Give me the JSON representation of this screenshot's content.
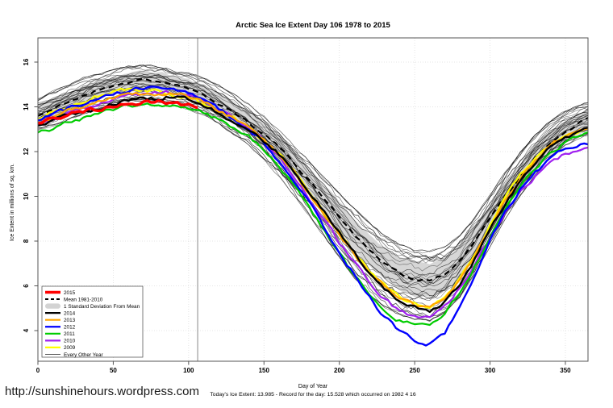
{
  "title": "Arctic Sea Ice Extent Day 106 1978 to 2015",
  "footer": {
    "url": "http://sunshinehours.wordpress.com",
    "status": "Today's Ice Extent: 13.985  - Record for the day: 15.528 which occurred on 1982 4 16"
  },
  "legend": [
    {
      "label": "2015",
      "color": "#ff0000",
      "swatch": "thick"
    },
    {
      "label": "Mean 1981-2010",
      "color": "#000000",
      "swatch": "dashed"
    },
    {
      "label": "1 Standard Deviation From Mean",
      "color": "#d3d3d3",
      "swatch": "band"
    },
    {
      "label": "2014",
      "color": "#000000",
      "swatch": "line"
    },
    {
      "label": "2013",
      "color": "#ffa500",
      "swatch": "line"
    },
    {
      "label": "2012",
      "color": "#0000ff",
      "swatch": "line"
    },
    {
      "label": "2011",
      "color": "#00cc00",
      "swatch": "line"
    },
    {
      "label": "2010",
      "color": "#a020f0",
      "swatch": "line"
    },
    {
      "label": "2009",
      "color": "#ffff00",
      "swatch": "line"
    },
    {
      "label": "Every Other Year",
      "color": "#444444",
      "swatch": "thin"
    }
  ],
  "chart_data": {
    "type": "line",
    "title": "Arctic Sea Ice Extent Day 106 1978 to 2015",
    "xlabel": "Day of Year",
    "ylabel": "Ice Extent in millions of sq. km.",
    "xlim": [
      0,
      365
    ],
    "ylim": [
      2.6,
      17.1
    ],
    "xticks": [
      0,
      50,
      100,
      150,
      200,
      250,
      300,
      350
    ],
    "yticks": [
      4,
      6,
      8,
      10,
      12,
      14,
      16
    ],
    "grid": "dotted",
    "legend_position": "bottom-left",
    "marker_day": 106,
    "todays_extent": 13.985,
    "record_for_day": {
      "value": 15.528,
      "date": "1982 4 16"
    },
    "x": [
      0,
      10,
      20,
      30,
      40,
      50,
      60,
      70,
      80,
      90,
      100,
      106,
      110,
      120,
      130,
      140,
      150,
      160,
      170,
      180,
      190,
      200,
      210,
      220,
      230,
      240,
      250,
      260,
      270,
      280,
      290,
      300,
      310,
      320,
      330,
      340,
      350,
      360,
      365
    ],
    "mean_series": {
      "name": "Mean 1981-2010",
      "color": "#000000",
      "style": "dashed",
      "width": 2.2,
      "values": [
        13.6,
        13.9,
        14.2,
        14.5,
        14.75,
        14.95,
        15.1,
        15.2,
        15.15,
        15.0,
        14.8,
        14.6,
        14.5,
        14.15,
        13.75,
        13.3,
        12.8,
        12.2,
        11.5,
        10.7,
        9.9,
        9.1,
        8.3,
        7.6,
        7.0,
        6.55,
        6.3,
        6.25,
        6.5,
        7.1,
        8.0,
        9.0,
        10.0,
        10.9,
        11.7,
        12.4,
        12.9,
        13.3,
        13.45
      ]
    },
    "std_dev_band": {
      "name": "1 Standard Deviation From Mean",
      "color": "#d6d6d6",
      "sd": [
        0.45,
        0.45,
        0.42,
        0.4,
        0.4,
        0.4,
        0.4,
        0.4,
        0.4,
        0.4,
        0.42,
        0.43,
        0.44,
        0.45,
        0.47,
        0.5,
        0.52,
        0.55,
        0.57,
        0.6,
        0.62,
        0.65,
        0.67,
        0.7,
        0.72,
        0.75,
        0.75,
        0.75,
        0.72,
        0.7,
        0.65,
        0.6,
        0.58,
        0.55,
        0.52,
        0.5,
        0.48,
        0.46,
        0.45
      ]
    },
    "series": [
      {
        "name": "2009",
        "color": "#ffff00",
        "width": 2.2,
        "values": [
          13.5,
          13.75,
          14.0,
          14.25,
          14.5,
          14.7,
          14.8,
          14.75,
          14.65,
          14.5,
          14.35,
          14.25,
          14.1,
          13.8,
          13.45,
          13.0,
          12.5,
          11.9,
          11.1,
          10.2,
          9.3,
          8.4,
          7.5,
          6.7,
          6.0,
          5.5,
          5.2,
          5.1,
          5.5,
          6.3,
          7.4,
          8.7,
          9.9,
          10.9,
          11.7,
          12.3,
          12.7,
          12.95,
          13.0
        ]
      },
      {
        "name": "2010",
        "color": "#a020f0",
        "width": 2.2,
        "values": [
          13.2,
          13.45,
          13.7,
          13.9,
          14.1,
          14.3,
          14.45,
          14.55,
          14.6,
          14.65,
          14.5,
          14.4,
          14.25,
          13.9,
          13.5,
          13.05,
          12.5,
          11.8,
          10.9,
          9.95,
          8.95,
          7.95,
          7.05,
          6.15,
          5.4,
          4.85,
          4.6,
          4.65,
          5.1,
          5.9,
          7.0,
          8.15,
          9.25,
          10.2,
          10.9,
          11.5,
          11.9,
          12.15,
          12.25
        ]
      },
      {
        "name": "2011",
        "color": "#00cc00",
        "width": 2.2,
        "values": [
          12.85,
          13.05,
          13.3,
          13.5,
          13.7,
          13.9,
          14.05,
          14.15,
          14.1,
          14.0,
          13.9,
          13.8,
          13.7,
          13.4,
          13.05,
          12.65,
          12.1,
          11.4,
          10.5,
          9.5,
          8.5,
          7.5,
          6.5,
          5.6,
          4.9,
          4.45,
          4.25,
          4.3,
          4.8,
          5.7,
          6.9,
          8.2,
          9.5,
          10.5,
          11.3,
          11.9,
          12.4,
          12.75,
          12.85
        ]
      },
      {
        "name": "2012",
        "color": "#0000ff",
        "width": 2.4,
        "values": [
          13.4,
          13.7,
          13.95,
          14.15,
          14.35,
          14.55,
          14.7,
          14.85,
          14.9,
          14.8,
          14.6,
          14.45,
          14.3,
          13.9,
          13.5,
          13.0,
          12.4,
          11.6,
          10.7,
          9.7,
          8.6,
          7.5,
          6.5,
          5.5,
          4.6,
          4.0,
          3.55,
          3.4,
          3.9,
          5.0,
          6.5,
          8.0,
          9.3,
          10.3,
          11.1,
          11.7,
          12.1,
          12.35,
          12.4
        ]
      },
      {
        "name": "2013",
        "color": "#ffa500",
        "width": 2.2,
        "values": [
          13.3,
          13.55,
          13.8,
          14.0,
          14.2,
          14.4,
          14.55,
          14.6,
          14.55,
          14.6,
          14.45,
          14.35,
          14.2,
          13.85,
          13.45,
          13.0,
          12.5,
          11.85,
          11.05,
          10.15,
          9.2,
          8.3,
          7.4,
          6.55,
          5.95,
          5.45,
          5.15,
          5.05,
          5.45,
          6.25,
          7.35,
          8.6,
          9.8,
          10.8,
          11.6,
          12.3,
          12.7,
          12.9,
          12.95
        ]
      },
      {
        "name": "2014",
        "color": "#000000",
        "width": 2.4,
        "values": [
          13.15,
          13.4,
          13.6,
          13.8,
          13.95,
          14.15,
          14.3,
          14.45,
          14.35,
          14.5,
          14.3,
          14.2,
          14.05,
          13.7,
          13.35,
          12.95,
          12.5,
          11.9,
          11.1,
          10.2,
          9.3,
          8.4,
          7.5,
          6.6,
          5.9,
          5.3,
          5.0,
          4.9,
          5.3,
          6.1,
          7.2,
          8.5,
          9.7,
          10.7,
          11.5,
          12.2,
          12.6,
          12.9,
          13.0
        ]
      },
      {
        "name": "2015",
        "color": "#ff0000",
        "width": 3.4,
        "values": [
          13.2,
          13.45,
          13.65,
          13.8,
          13.9,
          14.0,
          14.1,
          14.2,
          14.25,
          14.15,
          14.05,
          13.985,
          null,
          null,
          null,
          null,
          null,
          null,
          null,
          null,
          null,
          null,
          null,
          null,
          null,
          null,
          null,
          null,
          null,
          null,
          null,
          null,
          null,
          null,
          null,
          null,
          null,
          null,
          null
        ]
      }
    ],
    "background": {
      "name": "Every Other Year",
      "color": "#000000",
      "count": 31,
      "upper": [
        14.4,
        14.7,
        15.0,
        15.3,
        15.5,
        15.7,
        15.85,
        15.9,
        15.85,
        15.7,
        15.55,
        15.45,
        15.35,
        15.0,
        14.6,
        14.15,
        13.6,
        13.0,
        12.3,
        11.6,
        10.9,
        10.2,
        9.5,
        8.9,
        8.3,
        7.9,
        7.65,
        7.6,
        7.8,
        8.3,
        9.1,
        10.1,
        11.1,
        12.0,
        12.8,
        13.4,
        13.85,
        14.15,
        14.25
      ],
      "lower": [
        12.9,
        13.15,
        13.4,
        13.65,
        13.85,
        14.05,
        14.2,
        14.25,
        14.2,
        14.05,
        13.85,
        13.7,
        13.6,
        13.2,
        12.75,
        12.25,
        11.6,
        10.85,
        10.0,
        9.1,
        8.15,
        7.2,
        6.3,
        5.55,
        5.0,
        4.65,
        4.45,
        4.4,
        4.75,
        5.45,
        6.5,
        7.7,
        8.9,
        10.0,
        10.9,
        11.7,
        12.25,
        12.6,
        12.7
      ]
    }
  }
}
